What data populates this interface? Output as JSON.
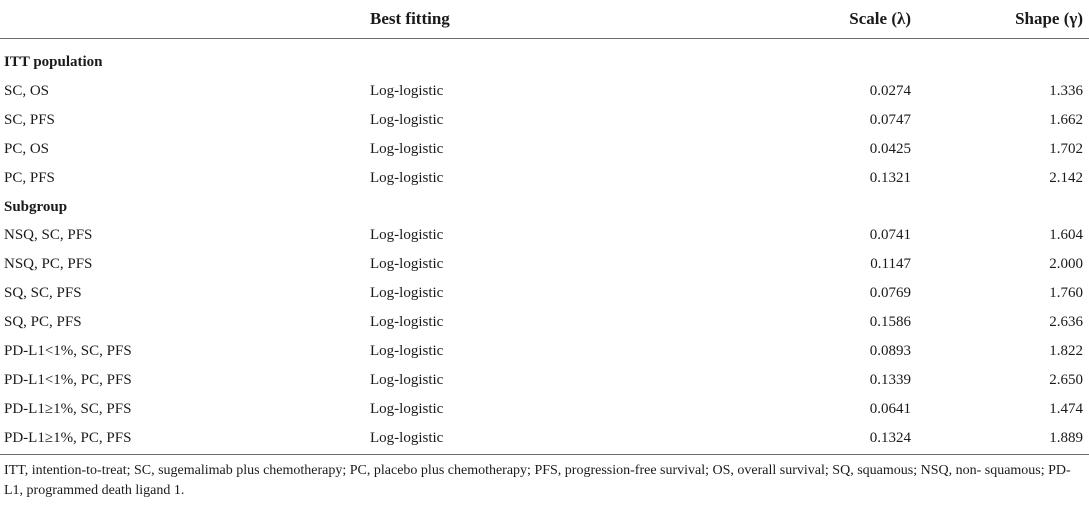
{
  "table": {
    "headers": [
      "",
      "Best fitting",
      "Scale (λ)",
      "Shape (γ)"
    ],
    "sections": [
      {
        "title": "ITT population",
        "rows": [
          {
            "label": "SC, OS",
            "fit": "Log-logistic",
            "scale": "0.0274",
            "shape": "1.336"
          },
          {
            "label": "SC, PFS",
            "fit": "Log-logistic",
            "scale": "0.0747",
            "shape": "1.662"
          },
          {
            "label": "PC, OS",
            "fit": "Log-logistic",
            "scale": "0.0425",
            "shape": "1.702"
          },
          {
            "label": "PC, PFS",
            "fit": "Log-logistic",
            "scale": "0.1321",
            "shape": "2.142"
          }
        ]
      },
      {
        "title": "Subgroup",
        "rows": [
          {
            "label": "NSQ, SC, PFS",
            "fit": "Log-logistic",
            "scale": "0.0741",
            "shape": "1.604"
          },
          {
            "label": "NSQ, PC, PFS",
            "fit": "Log-logistic",
            "scale": "0.1147",
            "shape": "2.000"
          },
          {
            "label": "SQ, SC, PFS",
            "fit": "Log-logistic",
            "scale": "0.0769",
            "shape": "1.760"
          },
          {
            "label": "SQ, PC, PFS",
            "fit": "Log-logistic",
            "scale": "0.1586",
            "shape": "2.636"
          },
          {
            "label": "PD-L1<1%, SC, PFS",
            "fit": "Log-logistic",
            "scale": "0.0893",
            "shape": "1.822"
          },
          {
            "label": "PD-L1<1%, PC, PFS",
            "fit": "Log-logistic",
            "scale": "0.1339",
            "shape": "2.650"
          },
          {
            "label": "PD-L1≥1%, SC, PFS",
            "fit": "Log-logistic",
            "scale": "0.0641",
            "shape": "1.474"
          },
          {
            "label": "PD-L1≥1%, PC, PFS",
            "fit": "Log-logistic",
            "scale": "0.1324",
            "shape": "1.889"
          }
        ]
      }
    ]
  },
  "footnote": "ITT, intention-to-treat; SC, sugemalimab plus chemotherapy; PC, placebo plus chemotherapy; PFS, progression-free survival; OS, overall survival; SQ, squamous; NSQ, non- squamous; PD-L1, programmed death ligand 1."
}
